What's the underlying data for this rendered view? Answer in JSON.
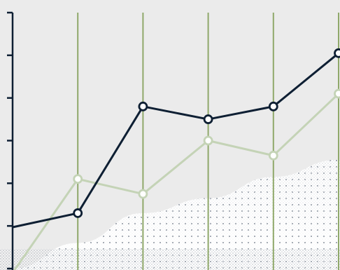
{
  "chart_data": {
    "type": "line",
    "title": "",
    "xlabel": "",
    "ylabel": "",
    "grid": "vertical",
    "legend": "none",
    "x": [
      0,
      1,
      2,
      3,
      4,
      5
    ],
    "xlim": [
      0,
      5
    ],
    "ylim": [
      0,
      6
    ],
    "y_ticks": [
      0,
      1,
      2,
      3,
      4,
      5,
      6
    ],
    "series": [
      {
        "key": "dark",
        "style": "line-with-hollow-markers",
        "color": "#0e1f33",
        "values": [
          0.97,
          1.3,
          3.8,
          3.5,
          3.8,
          5.05
        ]
      },
      {
        "key": "light",
        "style": "line-with-hollow-markers",
        "color": "#c4d3b6",
        "values": [
          -0.1,
          2.1,
          1.75,
          3.0,
          2.65,
          4.1
        ]
      },
      {
        "key": "area",
        "style": "stippled-area",
        "color": "#ffffff",
        "values": [
          0.0,
          0.6,
          1.3,
          1.65,
          2.15,
          2.55
        ]
      }
    ],
    "colors": {
      "background": "#ebebeb",
      "grid": "#8fa86a",
      "axis": "#0e1f33",
      "stipple": "#1a2a40"
    }
  }
}
